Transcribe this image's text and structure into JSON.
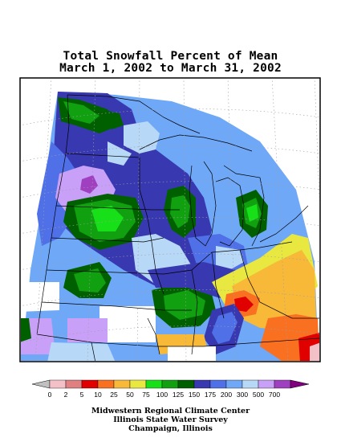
{
  "title": {
    "line1": "Total Snowfall Percent of Mean",
    "line2": "March 1, 2002 to March 31, 2002"
  },
  "legend": {
    "labels": [
      "0",
      "2",
      "5",
      "10",
      "25",
      "50",
      "75",
      "100",
      "125",
      "150",
      "175",
      "200",
      "300",
      "500",
      "700"
    ],
    "colors": [
      "#f4c0c8",
      "#e08080",
      "#e00000",
      "#f87020",
      "#f8b838",
      "#e8e840",
      "#18e018",
      "#10a010",
      "#006000",
      "#3838b0",
      "#5070e8",
      "#70a8f8",
      "#b8d8f8",
      "#c8a0f8",
      "#a040c0"
    ],
    "low_color": "#c0c0c0",
    "high_color": "#800080"
  },
  "credits": {
    "line1": "Midwestern Regional Climate Center",
    "line2": "Illinois State Water Survey",
    "line3": "Champaign, Illinois"
  },
  "map_colors": {
    "base": "#70a8f8",
    "pale": "#b8d8f8",
    "navy": "#3838b0",
    "blue": "#5070e8",
    "dark_green": "#006000",
    "green": "#10a010",
    "bright_green": "#18e018",
    "lavender": "#c8a0f8",
    "purple": "#a040c0",
    "yellow": "#e8e840",
    "gold": "#f8b838",
    "orange": "#f87020",
    "red": "#e00000",
    "pink": "#f4c0c8",
    "white": "#ffffff"
  }
}
